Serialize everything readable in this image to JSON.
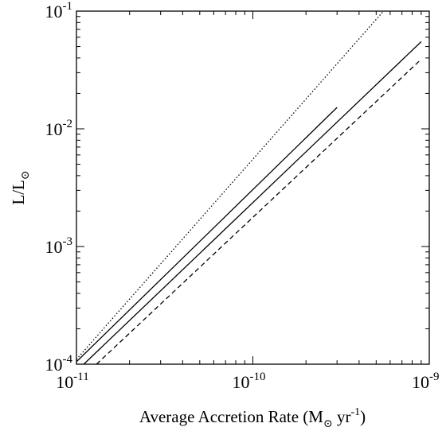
{
  "chart_data": {
    "type": "line",
    "xlabel": "Average Accretion Rate (M⊙ yr⁻¹)",
    "ylabel": "L/L⊙",
    "xscale": "log",
    "yscale": "log",
    "xlim": [
      1e-11,
      1e-09
    ],
    "ylim": [
      0.0001,
      0.1
    ],
    "grid": false,
    "x_ticks": [
      {
        "base": "10",
        "exp": "-11",
        "value": 1e-11
      },
      {
        "base": "10",
        "exp": "-10",
        "value": 1e-10
      },
      {
        "base": "10",
        "exp": "-9",
        "value": 1e-09
      }
    ],
    "y_ticks": [
      {
        "base": "10",
        "exp": "-4",
        "value": 0.0001
      },
      {
        "base": "10",
        "exp": "-3",
        "value": 0.001
      },
      {
        "base": "10",
        "exp": "-2",
        "value": 0.01
      },
      {
        "base": "10",
        "exp": "-1",
        "value": 0.1
      }
    ],
    "series": [
      {
        "style": "dotted",
        "x": [
          1e-11,
          5.5e-10
        ],
        "y": [
          0.00011,
          0.1
        ]
      },
      {
        "style": "solid",
        "x": [
          1e-11,
          3e-10
        ],
        "y": [
          0.000105,
          0.0152
        ]
      },
      {
        "style": "solid",
        "x": [
          1.1e-11,
          9e-10
        ],
        "y": [
          0.0001,
          0.055
        ]
      },
      {
        "style": "dashed",
        "x": [
          1.3e-11,
          9e-10
        ],
        "y": [
          0.0001,
          0.039
        ]
      }
    ]
  }
}
